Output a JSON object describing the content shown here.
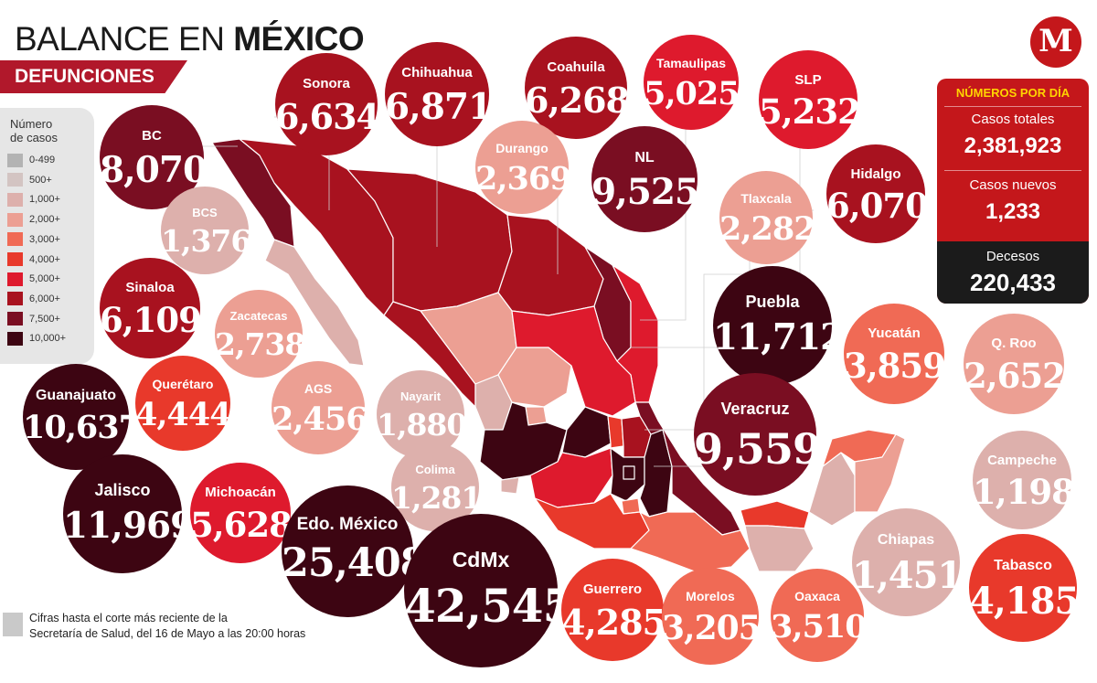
{
  "header": {
    "title_part1": "BALANCE EN ",
    "title_part2": "MÉXICO",
    "subtitle": "DEFUNCIONES"
  },
  "legend": {
    "title_line1": "Número",
    "title_line2": "de casos",
    "items": [
      {
        "label": "0-499",
        "color": "#b3b3b3"
      },
      {
        "label": "500+",
        "color": "#d3c4c2"
      },
      {
        "label": "1,000+",
        "color": "#ddb0ac"
      },
      {
        "label": "2,000+",
        "color": "#ec9f93"
      },
      {
        "label": "3,000+",
        "color": "#f06a55"
      },
      {
        "label": "4,000+",
        "color": "#e8392b"
      },
      {
        "label": "5,000+",
        "color": "#de1a2d"
      },
      {
        "label": "6,000+",
        "color": "#a8121f"
      },
      {
        "label": "7,500+",
        "color": "#7a0e22"
      },
      {
        "label": "10,000+",
        "color": "#3d0512"
      }
    ]
  },
  "logo": {
    "letter": "M"
  },
  "stats": {
    "header": "NÚMEROS POR DÍA",
    "total_label": "Casos totales",
    "total_value": "2,381,923",
    "new_label": "Casos nuevos",
    "new_value": "1,233",
    "deaths_label": "Decesos",
    "deaths_value": "220,433"
  },
  "states": [
    {
      "name": "BC",
      "value": "8,070",
      "color": "#7a0e22"
    },
    {
      "name": "BCS",
      "value": "1,376",
      "color": "#ddb0ac"
    },
    {
      "name": "Sonora",
      "value": "6,634",
      "color": "#a8121f"
    },
    {
      "name": "Chihuahua",
      "value": "6,871",
      "color": "#a8121f"
    },
    {
      "name": "Coahuila",
      "value": "6,268",
      "color": "#a8121f"
    },
    {
      "name": "Tamaulipas",
      "value": "5,025",
      "color": "#de1a2d"
    },
    {
      "name": "SLP",
      "value": "5,232",
      "color": "#de1a2d"
    },
    {
      "name": "Durango",
      "value": "2,369",
      "color": "#ec9f93"
    },
    {
      "name": "NL",
      "value": "9,525",
      "color": "#7a0e22"
    },
    {
      "name": "Hidalgo",
      "value": "6,070",
      "color": "#a8121f"
    },
    {
      "name": "Tlaxcala",
      "value": "2,282",
      "color": "#ec9f93"
    },
    {
      "name": "Sinaloa",
      "value": "6,109",
      "color": "#a8121f"
    },
    {
      "name": "Zacatecas",
      "value": "2,738",
      "color": "#ec9f93"
    },
    {
      "name": "Puebla",
      "value": "11,712",
      "color": "#3d0512"
    },
    {
      "name": "Yucatán",
      "value": "3,859",
      "color": "#f06a55"
    },
    {
      "name": "Q. Roo",
      "value": "2,652",
      "color": "#ec9f93"
    },
    {
      "name": "Guanajuato",
      "value": "10,637",
      "color": "#3d0512"
    },
    {
      "name": "Querétaro",
      "value": "4,444",
      "color": "#e8392b"
    },
    {
      "name": "AGS",
      "value": "2,456",
      "color": "#ec9f93"
    },
    {
      "name": "Nayarit",
      "value": "1,880",
      "color": "#ddb0ac"
    },
    {
      "name": "Veracruz",
      "value": "9,559",
      "color": "#7a0e22"
    },
    {
      "name": "Campeche",
      "value": "1,198",
      "color": "#ddb0ac"
    },
    {
      "name": "Colima",
      "value": "1,281",
      "color": "#ddb0ac"
    },
    {
      "name": "Jalisco",
      "value": "11,969",
      "color": "#3d0512"
    },
    {
      "name": "Michoacán",
      "value": "5,628",
      "color": "#de1a2d"
    },
    {
      "name": "Edo. México",
      "value": "25,408",
      "color": "#3d0512"
    },
    {
      "name": "CdMx",
      "value": "42,545",
      "color": "#3d0512"
    },
    {
      "name": "Chiapas",
      "value": "1,451",
      "color": "#ddb0ac"
    },
    {
      "name": "Guerrero",
      "value": "4,285",
      "color": "#e8392b"
    },
    {
      "name": "Morelos",
      "value": "3,205",
      "color": "#f06a55"
    },
    {
      "name": "Oaxaca",
      "value": "3,510",
      "color": "#f06a55"
    },
    {
      "name": "Tabasco",
      "value": "4,185",
      "color": "#e8392b"
    }
  ],
  "footnote": {
    "line1": "Cifras hasta el corte más reciente de la",
    "line2": "Secretaría de Salud, del 16 de Mayo a las 20:00 horas"
  }
}
